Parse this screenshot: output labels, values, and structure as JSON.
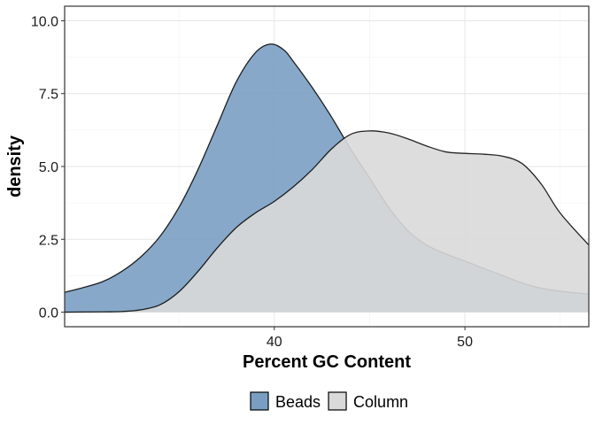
{
  "chart_data": {
    "type": "area",
    "subtype": "density",
    "xlabel": "Percent GC Content",
    "ylabel": "density",
    "xlim": [
      29,
      56.5
    ],
    "ylim": [
      -0.5,
      10.5
    ],
    "xticks": [
      40,
      50
    ],
    "xtick_labels": [
      "40",
      "50"
    ],
    "yticks": [
      0,
      2.5,
      5,
      7.5,
      10
    ],
    "ytick_labels": [
      "0.0",
      "2.5",
      "5.0",
      "7.5",
      "10.0"
    ],
    "grid": true,
    "legend_position": "bottom",
    "series": [
      {
        "name": "Beads",
        "color": "#7a9ec2",
        "points": [
          [
            29,
            0.68
          ],
          [
            30,
            0.85
          ],
          [
            31,
            1.05
          ],
          [
            32,
            1.4
          ],
          [
            33,
            1.9
          ],
          [
            34,
            2.6
          ],
          [
            35,
            3.6
          ],
          [
            36,
            4.9
          ],
          [
            37,
            6.4
          ],
          [
            38,
            7.9
          ],
          [
            39,
            8.9
          ],
          [
            39.8,
            9.2
          ],
          [
            40.5,
            9.0
          ],
          [
            41,
            8.6
          ],
          [
            42,
            7.7
          ],
          [
            43,
            6.7
          ],
          [
            44,
            5.6
          ],
          [
            45,
            4.6
          ],
          [
            46,
            3.6
          ],
          [
            47,
            2.8
          ],
          [
            48,
            2.3
          ],
          [
            49,
            2.0
          ],
          [
            50,
            1.75
          ],
          [
            51,
            1.5
          ],
          [
            52,
            1.25
          ],
          [
            53,
            1.0
          ],
          [
            54,
            0.82
          ],
          [
            55,
            0.72
          ],
          [
            56.5,
            0.62
          ]
        ]
      },
      {
        "name": "Column",
        "color": "#d9d9d9",
        "points": [
          [
            29,
            0.0
          ],
          [
            31,
            0.01
          ],
          [
            32,
            0.02
          ],
          [
            33,
            0.08
          ],
          [
            34,
            0.25
          ],
          [
            35,
            0.7
          ],
          [
            36,
            1.4
          ],
          [
            37,
            2.2
          ],
          [
            38,
            2.9
          ],
          [
            39,
            3.4
          ],
          [
            40,
            3.8
          ],
          [
            41,
            4.3
          ],
          [
            42,
            4.9
          ],
          [
            43,
            5.6
          ],
          [
            44,
            6.1
          ],
          [
            45,
            6.22
          ],
          [
            46,
            6.15
          ],
          [
            47,
            5.95
          ],
          [
            48,
            5.7
          ],
          [
            49,
            5.5
          ],
          [
            50,
            5.45
          ],
          [
            51,
            5.42
          ],
          [
            52,
            5.35
          ],
          [
            53,
            5.1
          ],
          [
            54,
            4.4
          ],
          [
            55,
            3.4
          ],
          [
            56.5,
            2.3
          ]
        ]
      }
    ]
  }
}
